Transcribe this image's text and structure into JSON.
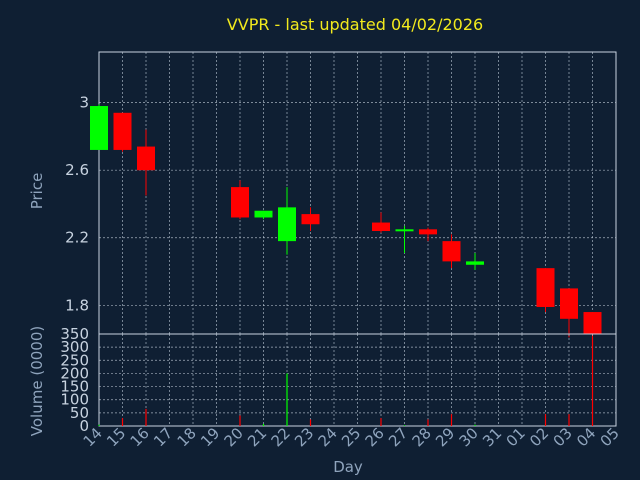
{
  "chart_data": [
    {
      "type": "candlestick",
      "title": "VVPR - last updated 04/02/2026",
      "ylabel": "Price",
      "ylim": [
        1.63,
        3.3
      ],
      "yticks": [
        1.8,
        2.2,
        2.6,
        3
      ],
      "ytick_labels": [
        "1.8",
        "2.2",
        "2.6",
        "3"
      ],
      "grid": true,
      "up_color": "#00ff00",
      "down_color": "#ff0000",
      "x": [
        "14",
        "15",
        "16",
        "17",
        "18",
        "19",
        "20",
        "21",
        "22",
        "23",
        "24",
        "25",
        "26",
        "27",
        "28",
        "29",
        "30",
        "31",
        "01",
        "02",
        "03",
        "04",
        "05"
      ],
      "candles": [
        {
          "day": "14",
          "open": 2.72,
          "high": 2.99,
          "low": 2.72,
          "close": 2.98
        },
        {
          "day": "15",
          "open": 2.94,
          "high": 2.94,
          "low": 2.71,
          "close": 2.72
        },
        {
          "day": "16",
          "open": 2.74,
          "high": 2.84,
          "low": 2.45,
          "close": 2.6
        },
        {
          "day": "20",
          "open": 2.5,
          "high": 2.54,
          "low": 2.31,
          "close": 2.32
        },
        {
          "day": "21",
          "open": 2.32,
          "high": 2.36,
          "low": 2.31,
          "close": 2.36
        },
        {
          "day": "22",
          "open": 2.18,
          "high": 2.5,
          "low": 2.1,
          "close": 2.38
        },
        {
          "day": "23",
          "open": 2.34,
          "high": 2.38,
          "low": 2.24,
          "close": 2.28
        },
        {
          "day": "26",
          "open": 2.29,
          "high": 2.35,
          "low": 2.23,
          "close": 2.24
        },
        {
          "day": "27",
          "open": 2.24,
          "high": 2.27,
          "low": 2.11,
          "close": 2.25
        },
        {
          "day": "28",
          "open": 2.25,
          "high": 2.26,
          "low": 2.18,
          "close": 2.22
        },
        {
          "day": "29",
          "open": 2.18,
          "high": 2.22,
          "low": 2.02,
          "close": 2.06
        },
        {
          "day": "30",
          "open": 2.04,
          "high": 2.11,
          "low": 2.01,
          "close": 2.06
        },
        {
          "day": "02",
          "open": 2.02,
          "high": 2.02,
          "low": 1.76,
          "close": 1.79
        },
        {
          "day": "03",
          "open": 1.9,
          "high": 1.9,
          "low": 1.61,
          "close": 1.72
        },
        {
          "day": "04",
          "open": 1.76,
          "high": 1.76,
          "low": 1.53,
          "close": 1.63
        }
      ]
    },
    {
      "type": "bar",
      "ylabel": "Volume (0000)",
      "xlabel": "Day",
      "ylim": [
        0,
        350
      ],
      "yticks": [
        0,
        50,
        100,
        150,
        200,
        250,
        300,
        350
      ],
      "ytick_labels": [
        "0",
        "50",
        "100",
        "150",
        "200",
        "250",
        "300",
        "350"
      ],
      "grid": true,
      "x": [
        "14",
        "15",
        "16",
        "17",
        "18",
        "19",
        "20",
        "21",
        "22",
        "23",
        "24",
        "25",
        "26",
        "27",
        "28",
        "29",
        "30",
        "31",
        "01",
        "02",
        "03",
        "04",
        "05"
      ],
      "volumes": [
        {
          "day": "14",
          "value": 5,
          "direction": "up"
        },
        {
          "day": "15",
          "value": 30,
          "direction": "down"
        },
        {
          "day": "16",
          "value": 65,
          "direction": "down"
        },
        {
          "day": "20",
          "value": 40,
          "direction": "down"
        },
        {
          "day": "21",
          "value": 8,
          "direction": "up"
        },
        {
          "day": "22",
          "value": 200,
          "direction": "up"
        },
        {
          "day": "23",
          "value": 25,
          "direction": "down"
        },
        {
          "day": "26",
          "value": 30,
          "direction": "down"
        },
        {
          "day": "27",
          "value": 3,
          "direction": "up"
        },
        {
          "day": "28",
          "value": 25,
          "direction": "down"
        },
        {
          "day": "29",
          "value": 45,
          "direction": "down"
        },
        {
          "day": "30",
          "value": 5,
          "direction": "up"
        },
        {
          "day": "02",
          "value": 45,
          "direction": "down"
        },
        {
          "day": "03",
          "value": 45,
          "direction": "down"
        },
        {
          "day": "04",
          "value": 340,
          "direction": "down"
        }
      ]
    }
  ]
}
